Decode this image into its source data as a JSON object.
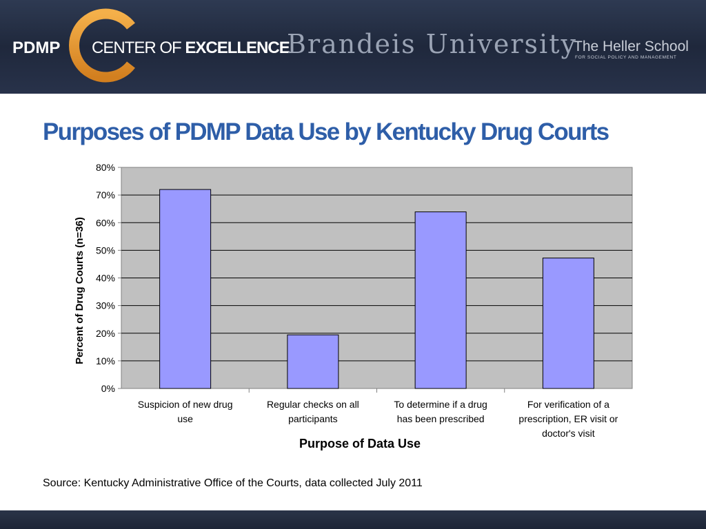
{
  "header": {
    "pdmp": "PDMP",
    "center_thin": "CENTER OF ",
    "center_bold": "EXCELLENCE",
    "university": "Brandeis University",
    "school": "The Heller School",
    "school_sub": "FOR SOCIAL POLICY AND MANAGEMENT"
  },
  "slide": {
    "source": "Source: Kentucky Administrative Office of the Courts, data collected July 2011"
  },
  "colors": {
    "bar": "#9999ff",
    "plot_bg": "#c0c0c0",
    "title": "#2e5ea8",
    "accent": "#e59a2e"
  },
  "chart_data": {
    "type": "bar",
    "title": "Purposes of PDMP Data Use by Kentucky Drug Courts",
    "xlabel": "Purpose of Data Use",
    "ylabel": "Percent of Drug Courts (n=36)",
    "categories": [
      [
        "Suspicion of new drug",
        "use"
      ],
      [
        "Regular checks on all",
        "participants"
      ],
      [
        "To determine if a drug",
        "has been prescribed"
      ],
      [
        "For verification of a",
        "prescription, ER visit or",
        "doctor's visit"
      ]
    ],
    "values": [
      72,
      19.4,
      63.9,
      47.2
    ],
    "ylim": [
      0,
      80
    ],
    "yticks": [
      "0%",
      "10%",
      "20%",
      "30%",
      "40%",
      "50%",
      "60%",
      "70%",
      "80%"
    ],
    "grid": true,
    "legend": "none"
  }
}
